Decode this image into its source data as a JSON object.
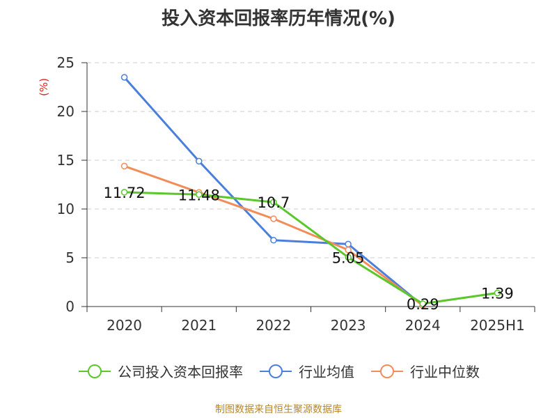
{
  "chart_title": "投入资本回报率历年情况(%)",
  "source_text": "制图数据来自恒生聚源数据库",
  "chart_data": {
    "type": "line",
    "title": "投入资本回报率历年情况(%)",
    "ylabel": "(%)",
    "xlabel": "",
    "categories": [
      "2020",
      "2021",
      "2022",
      "2023",
      "2024",
      "2025H1"
    ],
    "ylim": [
      0,
      25
    ],
    "yticks": [
      0,
      5,
      10,
      15,
      20,
      25
    ],
    "grid": true,
    "legend_position": "bottom",
    "series": [
      {
        "name": "公司投入资本回报率",
        "color": "#5ac72b",
        "values": [
          11.72,
          11.48,
          10.7,
          5.05,
          0.29,
          1.39
        ],
        "labels": [
          "11.72",
          "11.48",
          "10.7",
          "5.05",
          "0.29",
          "1.39"
        ]
      },
      {
        "name": "行业均值",
        "color": "#4a7fdc",
        "values": [
          23.5,
          14.9,
          6.8,
          6.4,
          0.1,
          null
        ]
      },
      {
        "name": "行业中位数",
        "color": "#f28d5a",
        "values": [
          14.4,
          11.7,
          9.0,
          5.8,
          0.1,
          null
        ]
      }
    ]
  }
}
